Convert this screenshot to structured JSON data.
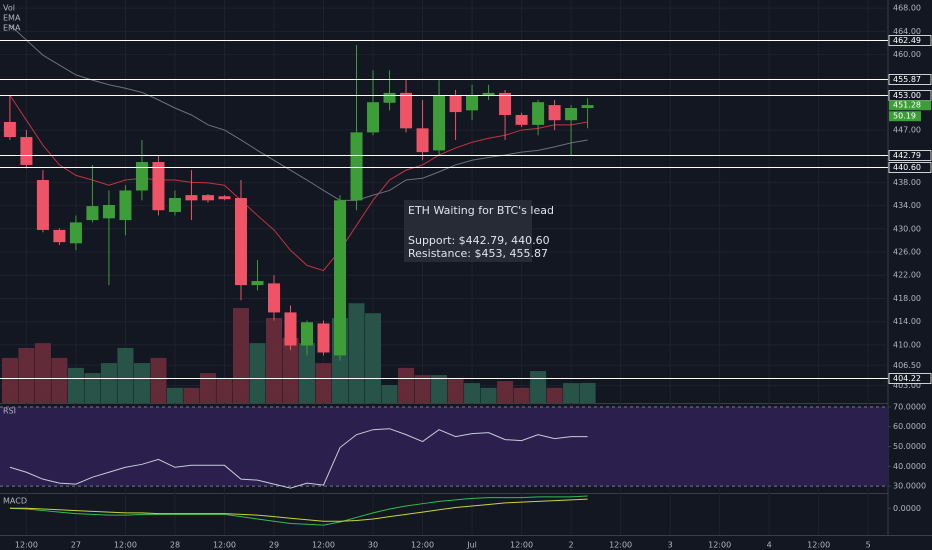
{
  "chart_data": [
    {
      "type": "candlestick",
      "open": [
        448.4,
        445.8,
        438.4,
        429.8,
        427.5,
        431.5,
        431.8,
        431.5,
        436.6,
        441.5,
        432.9,
        435.8,
        435.8,
        435.6,
        435.3,
        420.3,
        420.6,
        415.6,
        409.9,
        413.7,
        408.2,
        434.9,
        446.6,
        451.7,
        453.4,
        447.3,
        443.5,
        453.0,
        450.4,
        453.0,
        453.4,
        449.6,
        447.9,
        451.3,
        448.7,
        450.8
      ],
      "high": [
        453.0,
        447.0,
        440.1,
        430.1,
        432.3,
        441.0,
        436.6,
        437.5,
        445.3,
        442.7,
        436.6,
        440.1,
        436.0,
        435.8,
        438.4,
        424.6,
        422.0,
        416.8,
        414.2,
        414.2,
        435.8,
        461.65,
        457.3,
        457.3,
        455.6,
        452.2,
        455.6,
        453.9,
        454.8,
        454.8,
        453.9,
        450.0,
        452.2,
        452.2,
        451.3,
        452.5
      ],
      "low": [
        445.3,
        440.4,
        429.4,
        427.2,
        426.3,
        431.1,
        420.3,
        428.9,
        434.9,
        432.3,
        432.3,
        431.5,
        434.5,
        434.9,
        417.7,
        419.4,
        414.2,
        409.1,
        408.2,
        408.2,
        407.3,
        433.2,
        446.1,
        450.4,
        446.6,
        441.8,
        442.7,
        445.3,
        448.7,
        452.2,
        445.3,
        447.5,
        446.1,
        447.0,
        442.7,
        447.3
      ],
      "close": [
        445.8,
        441.0,
        429.8,
        427.7,
        431.1,
        433.9,
        434.1,
        436.6,
        441.5,
        433.2,
        435.3,
        434.9,
        434.9,
        435.1,
        420.3,
        421.0,
        415.6,
        409.9,
        413.9,
        408.7,
        434.9,
        446.6,
        451.8,
        453.4,
        447.3,
        443.2,
        453.0,
        450.1,
        453.0,
        453.4,
        449.6,
        447.9,
        451.8,
        448.7,
        450.8,
        451.3
      ],
      "up_color": "#3d9e39",
      "down_color": "#ef5366",
      "volume": {
        "name": "Vol",
        "values": [
          113,
          138,
          150,
          113,
          88,
          75,
          100,
          138,
          100,
          113,
          38,
          38,
          75,
          63,
          238,
          150,
          213,
          163,
          150,
          100,
          213,
          250,
          225,
          45,
          88,
          70,
          70,
          63,
          50,
          38,
          55,
          38,
          80,
          38,
          50,
          50.19
        ]
      },
      "volume_ylim": [
        0,
        1010
      ],
      "series": [
        {
          "name": "EMA",
          "color": "#c2333f",
          "values": [
            453.0,
            448.7,
            444.4,
            441.0,
            439.2,
            438.4,
            437.5,
            438.4,
            438.7,
            438.4,
            438.4,
            438.0,
            437.9,
            437.5,
            434.9,
            432.3,
            429.8,
            426.3,
            423.7,
            422.8,
            426.3,
            430.6,
            434.9,
            438.4,
            440.1,
            441.0,
            442.7,
            443.9,
            444.9,
            445.6,
            446.1,
            447.0,
            447.3,
            447.9,
            447.9,
            448.4
          ]
        },
        {
          "name": "EMA",
          "color": "#6b7080",
          "values": [
            465.1,
            462.5,
            459.9,
            458.2,
            456.5,
            455.6,
            454.8,
            454.2,
            453.5,
            452.2,
            450.8,
            449.6,
            447.9,
            447.0,
            445.3,
            443.5,
            441.8,
            440.1,
            438.4,
            436.6,
            434.9,
            434.9,
            435.8,
            436.6,
            438.4,
            438.7,
            439.8,
            441.0,
            441.8,
            442.3,
            442.7,
            443.2,
            443.5,
            444.1,
            444.8,
            445.3
          ]
        }
      ],
      "levels": [
        {
          "value": 462.49,
          "label": "462.49"
        },
        {
          "value": 455.87,
          "label": "455.87"
        },
        {
          "value": 453,
          "label": "453.00"
        },
        {
          "value": 442.79,
          "label": "442.79"
        },
        {
          "value": 440.6,
          "label": "440.60"
        },
        {
          "value": 404.22,
          "label": "404.22"
        }
      ],
      "last_price": 451.28,
      "annotation": {
        "title": "ETH Waiting for BTC's lead",
        "lines": [
          "Support: $442.79, 440.60",
          "Resistance: $453, 455.87"
        ]
      },
      "xlim": [
        -0.6,
        53.2
      ],
      "ylim": [
        400,
        469.4
      ],
      "yticks": [
        {
          "value": 468,
          "label": "468.00"
        },
        {
          "value": 464,
          "label": "464.00"
        },
        {
          "value": 460,
          "label": "460.00"
        },
        {
          "value": 447,
          "label": "447.00"
        },
        {
          "value": 438,
          "label": "438.00"
        },
        {
          "value": 434,
          "label": "434.00"
        },
        {
          "value": 430,
          "label": "430.00"
        },
        {
          "value": 426,
          "label": "426.00"
        },
        {
          "value": 422,
          "label": "422.00"
        },
        {
          "value": 418,
          "label": "418.00"
        },
        {
          "value": 414,
          "label": "414.00"
        },
        {
          "value": 410,
          "label": "410.00"
        },
        {
          "value": 406.5,
          "label": "406.50"
        },
        {
          "value": 403,
          "label": "403.00"
        }
      ],
      "grid": true
    },
    {
      "type": "line",
      "name": "RSI",
      "values": [
        39.5,
        37,
        33.5,
        31.5,
        31,
        34.5,
        37,
        39.5,
        41,
        43.5,
        39.5,
        40.5,
        40.5,
        40.5,
        33.5,
        33,
        31,
        29,
        31.5,
        30.5,
        49.5,
        56,
        58.5,
        59,
        56,
        52.5,
        58.5,
        55,
        56.5,
        57,
        53.5,
        53,
        56,
        54,
        55,
        55
      ],
      "color": "#c9ccd6",
      "band": [
        30,
        70
      ],
      "band_color": "#2a1f4d",
      "xlim": [
        -0.6,
        53.2
      ],
      "ylim": [
        26.5,
        72
      ],
      "yticks": [
        {
          "value": 70,
          "label": "70.0000"
        },
        {
          "value": 60,
          "label": "60.0000"
        },
        {
          "value": 50,
          "label": "50.0000"
        },
        {
          "value": 40,
          "label": "40.0000"
        },
        {
          "value": 30,
          "label": "30.0000"
        }
      ]
    },
    {
      "type": "line",
      "name": "MACD",
      "series": [
        {
          "color": "#2fbf4f",
          "values": [
            0,
            -0.1,
            -0.3,
            -0.5,
            -0.7,
            -0.8,
            -0.9,
            -0.9,
            -0.8,
            -0.8,
            -0.8,
            -0.8,
            -0.8,
            -0.8,
            -1.1,
            -1.4,
            -1.7,
            -2.0,
            -2.1,
            -2.2,
            -1.8,
            -1.2,
            -0.6,
            -0.1,
            0.3,
            0.6,
            0.9,
            1.1,
            1.3,
            1.4,
            1.4,
            1.4,
            1.5,
            1.5,
            1.5,
            1.6
          ]
        },
        {
          "color": "#c8d43a",
          "values": [
            0,
            0,
            -0.1,
            -0.2,
            -0.3,
            -0.4,
            -0.5,
            -0.6,
            -0.6,
            -0.7,
            -0.7,
            -0.7,
            -0.7,
            -0.7,
            -0.8,
            -0.9,
            -1.1,
            -1.3,
            -1.5,
            -1.7,
            -1.7,
            -1.6,
            -1.4,
            -1.1,
            -0.8,
            -0.5,
            -0.2,
            0.1,
            0.3,
            0.5,
            0.7,
            0.8,
            0.9,
            1.0,
            1.1,
            1.2
          ]
        }
      ],
      "xlim": [
        -0.6,
        53.2
      ],
      "ylim": [
        -3.5,
        2
      ],
      "yticks": [
        {
          "value": 0,
          "label": "0.0000"
        }
      ],
      "xticks": [
        {
          "value": 1,
          "label": "12:00"
        },
        {
          "value": 4,
          "label": "27"
        },
        {
          "value": 7,
          "label": "12:00"
        },
        {
          "value": 10,
          "label": "28"
        },
        {
          "value": 13,
          "label": "12:00"
        },
        {
          "value": 16,
          "label": "29"
        },
        {
          "value": 19,
          "label": "12:00"
        },
        {
          "value": 22,
          "label": "30"
        },
        {
          "value": 25,
          "label": "12:00"
        },
        {
          "value": 28,
          "label": "Jul"
        },
        {
          "value": 31,
          "label": "12:00"
        },
        {
          "value": 34,
          "label": "2"
        },
        {
          "value": 37,
          "label": "12:00"
        },
        {
          "value": 40,
          "label": "3"
        },
        {
          "value": 43,
          "label": "12:00"
        },
        {
          "value": 46,
          "label": "4"
        },
        {
          "value": 49,
          "label": "12:00"
        },
        {
          "value": 52,
          "label": "5"
        }
      ]
    }
  ]
}
